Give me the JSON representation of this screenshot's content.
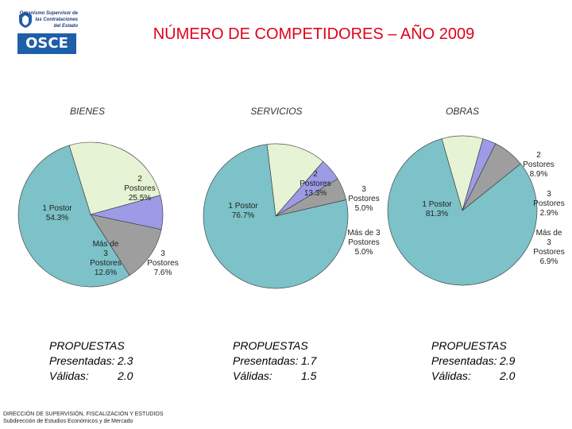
{
  "logo": {
    "line1": "Organismo Supervisor de",
    "line2": "las Contrataciones",
    "line3": "del Estado",
    "text": "OSCE"
  },
  "title": "NÚMERO DE COMPETIDORES – AÑO 2009",
  "chart_data": [
    {
      "type": "pie",
      "title": "BIENES",
      "slices": [
        {
          "label": "1 Postor",
          "value": 54.3,
          "color": "#7cc2c8"
        },
        {
          "label": "2 Postores",
          "value": 25.5,
          "color": "#e6f3d4"
        },
        {
          "label": "3 Postores",
          "value": 7.6,
          "color": "#9d9ae6"
        },
        {
          "label": "Más de 3 Postores",
          "value": 12.6,
          "color": "#9e9e9e"
        }
      ],
      "value_labels": [
        "54.3%",
        "25.5%",
        "7.6%",
        "12.6%"
      ]
    },
    {
      "type": "pie",
      "title": "SERVICIOS",
      "slices": [
        {
          "label": "1 Postor",
          "value": 76.7,
          "color": "#7cc2c8"
        },
        {
          "label": "2 Postores",
          "value": 13.3,
          "color": "#e6f3d4"
        },
        {
          "label": "3 Postores",
          "value": 5.0,
          "color": "#9d9ae6"
        },
        {
          "label": "Más de 3 Postores",
          "value": 5.0,
          "color": "#9e9e9e"
        }
      ],
      "value_labels": [
        "76.7%",
        "13.3%",
        "5.0%",
        "5.0%"
      ]
    },
    {
      "type": "pie",
      "title": "OBRAS",
      "slices": [
        {
          "label": "1 Postor",
          "value": 81.3,
          "color": "#7cc2c8"
        },
        {
          "label": "2 Postores",
          "value": 8.9,
          "color": "#e6f3d4"
        },
        {
          "label": "3 Postores",
          "value": 2.9,
          "color": "#9d9ae6"
        },
        {
          "label": "Más de 3 Postores",
          "value": 6.9,
          "color": "#9e9e9e"
        }
      ],
      "value_labels": [
        "81.3%",
        "8.9%",
        "2.9%",
        "6.9%"
      ]
    }
  ],
  "propuestas": [
    {
      "heading": "PROPUESTAS",
      "presentadas_label": "Presentadas:",
      "presentadas_value": "2.3",
      "validas_label": "Válidas:",
      "validas_value": "2.0"
    },
    {
      "heading": "PROPUESTAS",
      "presentadas_label": "Presentadas:",
      "presentadas_value": "1.7",
      "validas_label": "Válidas:",
      "validas_value": "1.5"
    },
    {
      "heading": "PROPUESTAS",
      "presentadas_label": "Presentadas:",
      "presentadas_value": "2.9",
      "validas_label": "Válidas:",
      "validas_value": "2.0"
    }
  ],
  "footer": {
    "line1": "DIRECCIÓN DE SUPERVISIÓN, FISCALIZACIÓN Y ESTUDIOS",
    "line2": "Subdirección de Estudios Económicos y de Mercado"
  }
}
